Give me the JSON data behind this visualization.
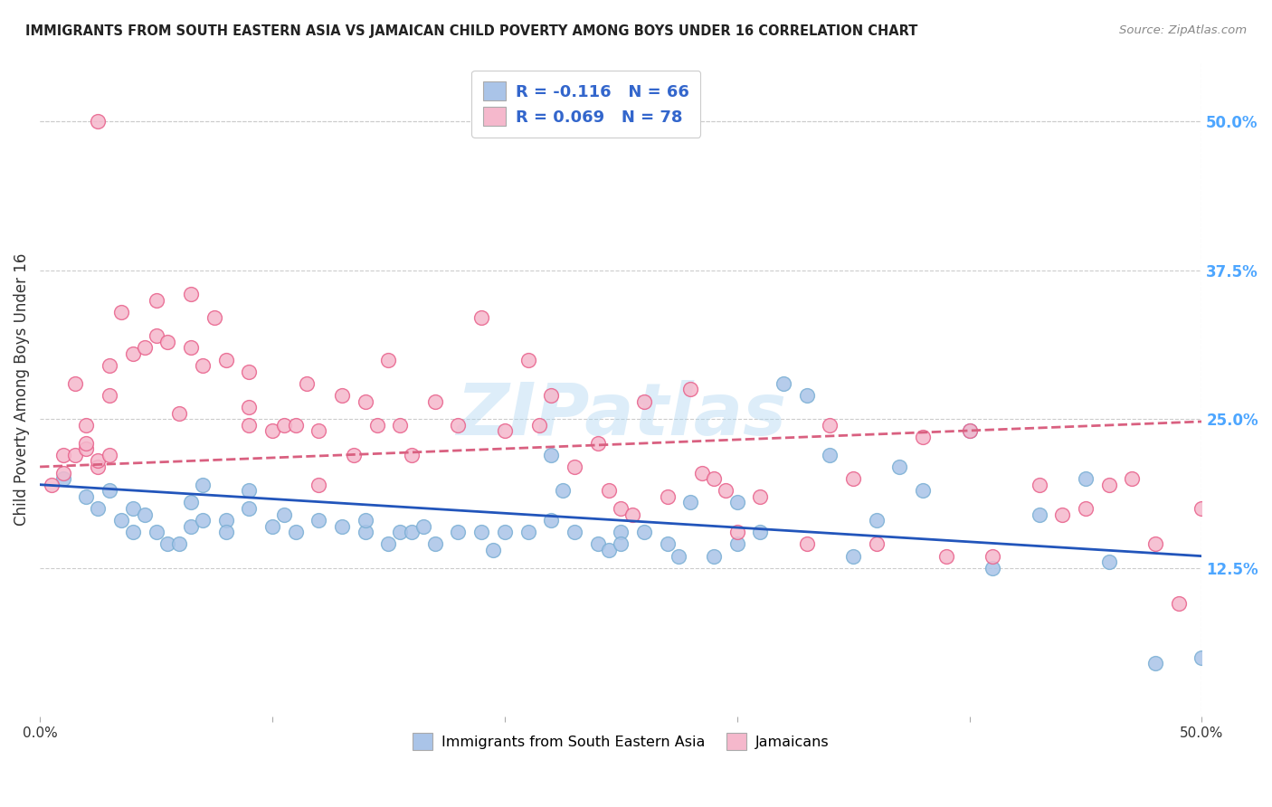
{
  "title": "IMMIGRANTS FROM SOUTH EASTERN ASIA VS JAMAICAN CHILD POVERTY AMONG BOYS UNDER 16 CORRELATION CHART",
  "source": "Source: ZipAtlas.com",
  "ylabel": "Child Poverty Among Boys Under 16",
  "yticks": [
    "50.0%",
    "37.5%",
    "25.0%",
    "12.5%"
  ],
  "ytick_vals": [
    0.5,
    0.375,
    0.25,
    0.125
  ],
  "blue_color": "#aac4e8",
  "blue_edge_color": "#7aafd4",
  "pink_color": "#f5b8cc",
  "pink_edge_color": "#e8608a",
  "blue_line_color": "#2255bb",
  "pink_line_color": "#d96080",
  "watermark": "ZIPatlas",
  "xmin": 0.0,
  "xmax": 0.5,
  "ymin": 0.0,
  "ymax": 0.55,
  "blue_scatter_x": [
    0.01,
    0.02,
    0.025,
    0.03,
    0.035,
    0.04,
    0.04,
    0.045,
    0.05,
    0.055,
    0.06,
    0.065,
    0.065,
    0.07,
    0.07,
    0.08,
    0.08,
    0.09,
    0.09,
    0.1,
    0.105,
    0.11,
    0.12,
    0.13,
    0.14,
    0.14,
    0.15,
    0.155,
    0.16,
    0.165,
    0.17,
    0.18,
    0.19,
    0.195,
    0.2,
    0.21,
    0.22,
    0.22,
    0.225,
    0.23,
    0.24,
    0.245,
    0.25,
    0.25,
    0.26,
    0.27,
    0.275,
    0.28,
    0.29,
    0.3,
    0.3,
    0.31,
    0.32,
    0.33,
    0.34,
    0.35,
    0.36,
    0.37,
    0.38,
    0.4,
    0.41,
    0.43,
    0.45,
    0.46,
    0.48,
    0.5
  ],
  "blue_scatter_y": [
    0.2,
    0.185,
    0.175,
    0.19,
    0.165,
    0.175,
    0.155,
    0.17,
    0.155,
    0.145,
    0.145,
    0.18,
    0.16,
    0.195,
    0.165,
    0.165,
    0.155,
    0.175,
    0.19,
    0.16,
    0.17,
    0.155,
    0.165,
    0.16,
    0.155,
    0.165,
    0.145,
    0.155,
    0.155,
    0.16,
    0.145,
    0.155,
    0.155,
    0.14,
    0.155,
    0.155,
    0.22,
    0.165,
    0.19,
    0.155,
    0.145,
    0.14,
    0.155,
    0.145,
    0.155,
    0.145,
    0.135,
    0.18,
    0.135,
    0.18,
    0.145,
    0.155,
    0.28,
    0.27,
    0.22,
    0.135,
    0.165,
    0.21,
    0.19,
    0.24,
    0.125,
    0.17,
    0.2,
    0.13,
    0.045,
    0.05
  ],
  "pink_scatter_x": [
    0.005,
    0.01,
    0.01,
    0.015,
    0.015,
    0.02,
    0.02,
    0.02,
    0.025,
    0.025,
    0.03,
    0.03,
    0.03,
    0.035,
    0.04,
    0.045,
    0.05,
    0.05,
    0.055,
    0.06,
    0.065,
    0.065,
    0.07,
    0.075,
    0.08,
    0.09,
    0.09,
    0.09,
    0.1,
    0.105,
    0.11,
    0.115,
    0.12,
    0.12,
    0.13,
    0.135,
    0.14,
    0.145,
    0.15,
    0.155,
    0.16,
    0.17,
    0.18,
    0.19,
    0.2,
    0.21,
    0.215,
    0.22,
    0.23,
    0.24,
    0.245,
    0.25,
    0.255,
    0.26,
    0.27,
    0.28,
    0.285,
    0.29,
    0.295,
    0.3,
    0.31,
    0.33,
    0.34,
    0.35,
    0.36,
    0.38,
    0.39,
    0.4,
    0.41,
    0.43,
    0.44,
    0.45,
    0.46,
    0.47,
    0.48,
    0.49,
    0.5,
    0.025
  ],
  "pink_scatter_y": [
    0.195,
    0.22,
    0.205,
    0.22,
    0.28,
    0.245,
    0.225,
    0.23,
    0.21,
    0.215,
    0.22,
    0.27,
    0.295,
    0.34,
    0.305,
    0.31,
    0.35,
    0.32,
    0.315,
    0.255,
    0.355,
    0.31,
    0.295,
    0.335,
    0.3,
    0.29,
    0.26,
    0.245,
    0.24,
    0.245,
    0.245,
    0.28,
    0.24,
    0.195,
    0.27,
    0.22,
    0.265,
    0.245,
    0.3,
    0.245,
    0.22,
    0.265,
    0.245,
    0.335,
    0.24,
    0.3,
    0.245,
    0.27,
    0.21,
    0.23,
    0.19,
    0.175,
    0.17,
    0.265,
    0.185,
    0.275,
    0.205,
    0.2,
    0.19,
    0.155,
    0.185,
    0.145,
    0.245,
    0.2,
    0.145,
    0.235,
    0.135,
    0.24,
    0.135,
    0.195,
    0.17,
    0.175,
    0.195,
    0.2,
    0.145,
    0.095,
    0.175,
    0.5
  ],
  "blue_line_x": [
    0.0,
    0.5
  ],
  "blue_line_y": [
    0.195,
    0.135
  ],
  "pink_line_x": [
    0.0,
    0.5
  ],
  "pink_line_y": [
    0.21,
    0.248
  ],
  "background_color": "#ffffff",
  "grid_color": "#cccccc",
  "right_axis_color": "#4da6ff",
  "legend_entry1_R": "R = -0.116",
  "legend_entry1_N": "N = 66",
  "legend_entry2_R": "R = 0.069",
  "legend_entry2_N": "N = 78",
  "legend_text_color": "#3366cc"
}
